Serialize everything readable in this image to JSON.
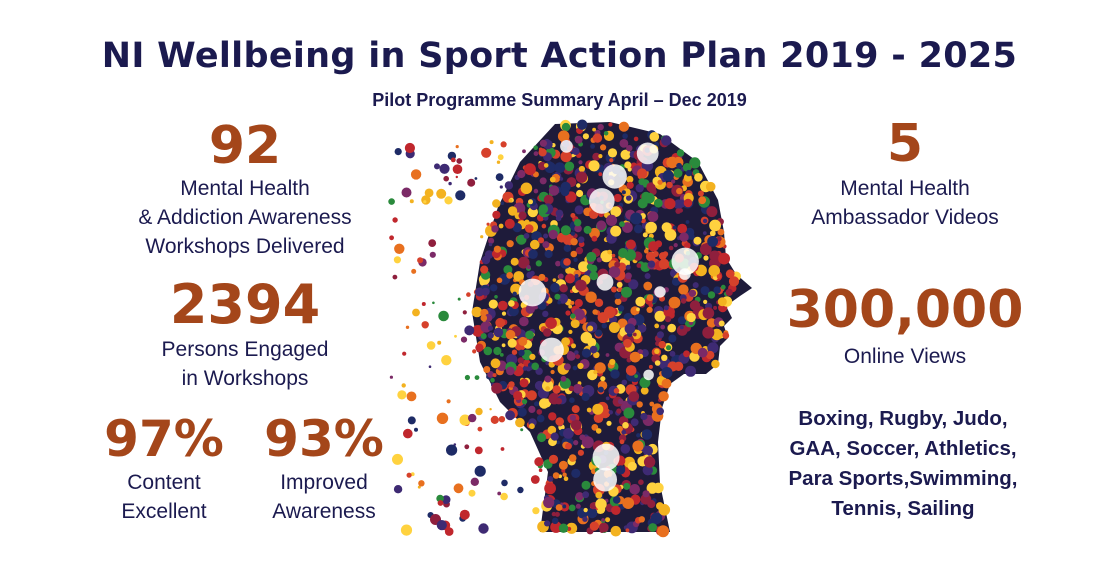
{
  "title": "NI Wellbeing in Sport Action Plan 2019 - 2025",
  "subtitle": "Pilot Programme Summary April – Dec 2019",
  "colors": {
    "navy": "#1b1a4f",
    "rust": "#a4461a",
    "dots": [
      "#c0272d",
      "#f3b220",
      "#3e2a73",
      "#7b2a67",
      "#2a8a3c",
      "#e8701f",
      "#1e2b66",
      "#d6412b",
      "#8f1f3d",
      "#ffd23f"
    ]
  },
  "stats": {
    "workshops": {
      "number": "92",
      "lines": [
        "Mental Health",
        "& Addiction Awareness",
        "Workshops Delivered"
      ]
    },
    "persons": {
      "number": "2394",
      "lines": [
        "Persons Engaged",
        "in Workshops"
      ]
    },
    "content": {
      "number": "97%",
      "lines": [
        "Content",
        "Excellent"
      ]
    },
    "awareness": {
      "number": "93%",
      "lines": [
        "Improved",
        "Awareness"
      ]
    },
    "videos": {
      "number": "5",
      "lines": [
        "Mental Health",
        "Ambassador Videos"
      ]
    },
    "views": {
      "number": "300,000",
      "lines": [
        "Online Views"
      ]
    }
  },
  "sports": [
    "Boxing, Rugby, Judo,",
    "GAA, Soccer, Athletics,",
    "Para Sports,Swimming,",
    "Tennis, Sailing"
  ],
  "illustration": {
    "name": "dotted-head-profile-icon"
  }
}
